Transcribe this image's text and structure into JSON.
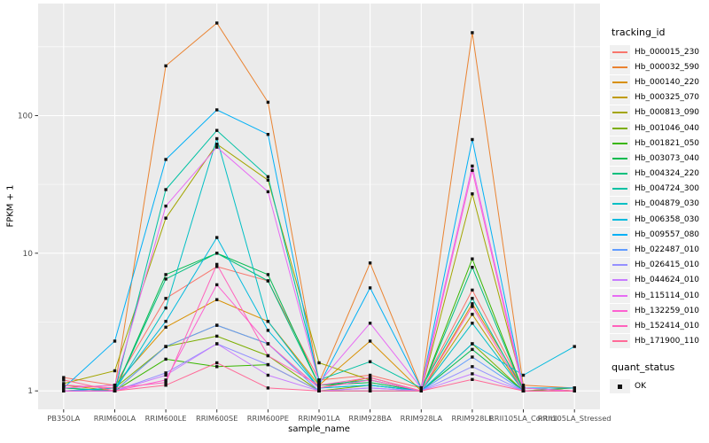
{
  "chart_data": {
    "type": "line",
    "title": "",
    "xlabel": "sample_name",
    "ylabel": "FPKM + 1",
    "y_scale": "log10",
    "y_ticks": [
      1,
      10,
      100
    ],
    "y_tick_labels": [
      "1",
      "10",
      "100"
    ],
    "y_minor_ticks": [
      3.1623,
      31.623,
      316.23
    ],
    "ylim_log10_expanded": [
      -0.134,
      2.814
    ],
    "grid": "on",
    "legend_position": "right",
    "panel_bg": "#EBEBEB",
    "grid_color": "#FFFFFF",
    "tick_label_color": "#4D4D4D",
    "tick_mark_color": "#333333",
    "point_color": "#111111",
    "point_shape": "filled-square",
    "legend": {
      "series_title": "tracking_id",
      "shape_title": "quant_status",
      "shape_label": "OK",
      "key_bg": "#F0F0F0"
    },
    "categories": [
      "PB350LA",
      "RRIM600LA",
      "RRIM600LE",
      "RRIM600SE",
      "RRIM600PE",
      "RRIM901LA",
      "RRIM928BA",
      "RRIM928LA",
      "RRIM928LE",
      "RRII105LA_Control",
      "RRII105LA_Stressed"
    ],
    "series": [
      {
        "name": "Hb_000015_230",
        "color": "#F8766D",
        "values": [
          1.25,
          1.1,
          4.7,
          8.0,
          6.3,
          1.2,
          1.3,
          1.05,
          5.4,
          1.05,
          1.0
        ]
      },
      {
        "name": "Hb_000032_590",
        "color": "#EA8331",
        "values": [
          1.1,
          1.05,
          230,
          470,
          125,
          1.15,
          8.5,
          1.05,
          400,
          1.1,
          1.05
        ]
      },
      {
        "name": "Hb_000140_220",
        "color": "#D89000",
        "values": [
          1.05,
          1.1,
          2.9,
          4.6,
          3.2,
          1.1,
          2.3,
          1.0,
          4.3,
          1.05,
          1.0
        ]
      },
      {
        "name": "Hb_000325_070",
        "color": "#C09B00",
        "values": [
          1.1,
          1.0,
          2.1,
          3.0,
          2.2,
          1.05,
          1.25,
          1.0,
          3.6,
          1.0,
          1.0
        ]
      },
      {
        "name": "Hb_000813_090",
        "color": "#A3A500",
        "values": [
          1.13,
          1.4,
          18,
          62,
          34,
          1.6,
          1.2,
          1.0,
          27,
          1.05,
          1.0
        ]
      },
      {
        "name": "Hb_001046_040",
        "color": "#7CAE00",
        "values": [
          1.0,
          1.05,
          2.1,
          2.5,
          1.8,
          1.0,
          1.1,
          1.0,
          2.2,
          1.0,
          1.0
        ]
      },
      {
        "name": "Hb_001821_050",
        "color": "#39B600",
        "values": [
          1.05,
          1.0,
          1.7,
          1.5,
          1.55,
          1.0,
          1.0,
          1.0,
          9.1,
          1.0,
          1.05
        ]
      },
      {
        "name": "Hb_003073_040",
        "color": "#00BB4E",
        "values": [
          1.0,
          1.0,
          7.0,
          10,
          7.0,
          1.1,
          1.15,
          1.0,
          2.0,
          1.0,
          1.0
        ]
      },
      {
        "name": "Hb_004324_220",
        "color": "#00BF7D",
        "values": [
          1.05,
          1.0,
          6.5,
          10,
          6.3,
          1.1,
          1.2,
          1.0,
          7.9,
          1.0,
          1.0
        ]
      },
      {
        "name": "Hb_004724_300",
        "color": "#00C1A3",
        "values": [
          1.0,
          1.0,
          29,
          78,
          36,
          1.2,
          1.63,
          1.05,
          4.7,
          1.0,
          1.0
        ]
      },
      {
        "name": "Hb_004879_030",
        "color": "#00BFC4",
        "values": [
          1.0,
          1.0,
          4.0,
          68,
          3.2,
          1.05,
          1.1,
          1.0,
          3.1,
          1.0,
          1.0
        ]
      },
      {
        "name": "Hb_006358_030",
        "color": "#00BADE",
        "values": [
          1.0,
          1.05,
          3.2,
          13,
          2.75,
          1.05,
          1.1,
          1.0,
          2.2,
          1.3,
          2.1
        ]
      },
      {
        "name": "Hb_009557_080",
        "color": "#00B0F6",
        "values": [
          1.05,
          2.3,
          48,
          110,
          73,
          1.1,
          5.6,
          1.05,
          67,
          1.05,
          1.05
        ]
      },
      {
        "name": "Hb_022487_010",
        "color": "#619CFF",
        "values": [
          1.0,
          1.0,
          2.1,
          3.0,
          2.2,
          1.0,
          1.05,
          1.0,
          1.76,
          1.0,
          1.0
        ]
      },
      {
        "name": "Hb_026415_010",
        "color": "#9590FF",
        "values": [
          1.0,
          1.0,
          1.35,
          2.2,
          1.55,
          1.0,
          1.0,
          1.0,
          1.5,
          1.0,
          1.0
        ]
      },
      {
        "name": "Hb_044624_010",
        "color": "#C77CFF",
        "values": [
          1.0,
          1.0,
          1.3,
          2.2,
          1.3,
          1.0,
          1.05,
          1.0,
          1.33,
          1.0,
          1.0
        ]
      },
      {
        "name": "Hb_115114_010",
        "color": "#E76BF3",
        "values": [
          1.05,
          1.1,
          22,
          59,
          28,
          1.15,
          3.1,
          1.05,
          43,
          1.05,
          1.0
        ]
      },
      {
        "name": "Hb_132259_010",
        "color": "#FD61D1",
        "values": [
          1.0,
          1.0,
          1.2,
          5.9,
          2.2,
          1.05,
          1.2,
          1.0,
          40,
          1.0,
          1.0
        ]
      },
      {
        "name": "Hb_152414_010",
        "color": "#FF62BC",
        "values": [
          1.1,
          1.05,
          1.15,
          8.3,
          1.8,
          1.1,
          1.25,
          1.0,
          4.1,
          1.0,
          1.0
        ]
      },
      {
        "name": "Hb_171900_110",
        "color": "#FF6A98",
        "values": [
          1.2,
          1.0,
          1.1,
          1.6,
          1.05,
          1.0,
          1.0,
          1.0,
          1.21,
          1.0,
          1.0
        ]
      }
    ]
  }
}
